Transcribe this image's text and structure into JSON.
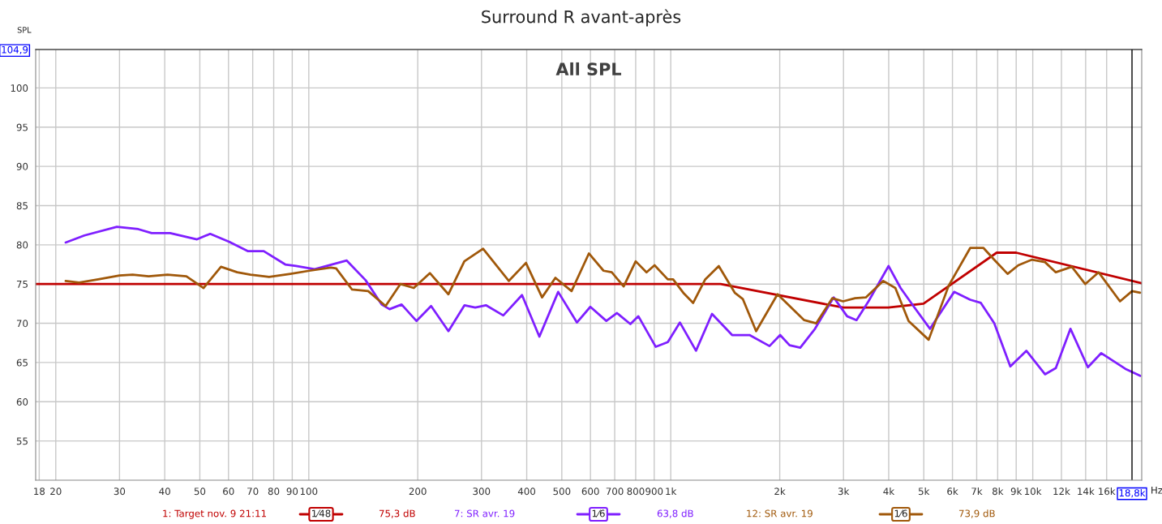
{
  "chart_data": {
    "type": "line",
    "title": "Surround R avant-après",
    "subtitle": "All SPL",
    "xlabel": "Hz",
    "ylabel": "SPL",
    "log": "x",
    "grid": true,
    "legend": "bottom",
    "line_style": "solid",
    "marker": "none",
    "xlim": [
      17.6,
      20000
    ],
    "ylim": [
      50,
      104.9
    ],
    "xticks": [
      18,
      20,
      30,
      40,
      50,
      60,
      70,
      80,
      90,
      100,
      200,
      300,
      400,
      500,
      600,
      700,
      800,
      900,
      {
        "value": 1000,
        "label": "1k"
      },
      {
        "value": 2000,
        "label": "2k"
      },
      {
        "value": 3000,
        "label": "3k"
      },
      {
        "value": 4000,
        "label": "4k"
      },
      {
        "value": 5000,
        "label": "5k"
      },
      {
        "value": 6000,
        "label": "6k"
      },
      {
        "value": 7000,
        "label": "7k"
      },
      {
        "value": 8000,
        "label": "8k"
      },
      {
        "value": 9000,
        "label": "9k"
      },
      {
        "value": 10000,
        "label": "10k"
      },
      {
        "value": 12000,
        "label": "12k"
      },
      {
        "value": 14000,
        "label": "14k"
      },
      {
        "value": 16000,
        "label": "16k"
      }
    ],
    "yticks": [
      55,
      60,
      65,
      70,
      75,
      80,
      85,
      90,
      95,
      100,
      {
        "value": 104.9,
        "label": "104,9"
      }
    ],
    "ref_lines": [
      {
        "axis": "x",
        "value": 18800,
        "label": "18,8k",
        "color": "#000000"
      }
    ],
    "annotations": [
      "1⁄48",
      "75,3 dB",
      "1⁄6",
      "63,8 dB",
      "1⁄6",
      "73,9 dB"
    ],
    "series": [
      {
        "name": "1: Target nov. 9 21:11",
        "color": "#c00000",
        "x": [
          17.6,
          1373,
          2997,
          3990,
          4990,
          7950,
          9000,
          20000
        ],
        "values": [
          75,
          75,
          72,
          72,
          72.5,
          79,
          79,
          75.1
        ]
      },
      {
        "name": "7: SR avr. 19",
        "color": "#7f1fff",
        "x": [
          21.3,
          24.0,
          29.5,
          33.8,
          36.8,
          41.4,
          49.1,
          53.4,
          60.2,
          67.8,
          75.1,
          86.1,
          92.2,
          103.8,
          127.3,
          143.5,
          158.9,
          167.2,
          180.5,
          198.3,
          217.7,
          243.1,
          269.3,
          288.3,
          308.6,
          344.6,
          388.2,
          433.5,
          488.6,
          550.4,
          599.5,
          663.7,
          710.3,
          773.5,
          813.8,
          908.9,
          981.3,
          1060,
          1174,
          1300,
          1477,
          1650,
          1874,
          2005,
          2129,
          2279,
          2503,
          2819,
          3070,
          3259,
          3517,
          3996,
          4313,
          4697,
          5202,
          6064,
          6717,
          7188,
          7828,
          8669,
          9601,
          10810,
          11580,
          12710,
          14200,
          15460,
          18020,
          19800
        ],
        "values": [
          80.3,
          81.2,
          82.3,
          82.0,
          81.5,
          81.5,
          80.7,
          81.4,
          80.4,
          79.2,
          79.2,
          77.5,
          77.3,
          76.9,
          78.0,
          75.5,
          72.4,
          71.8,
          72.4,
          70.3,
          72.2,
          69.0,
          72.3,
          72.0,
          72.3,
          71.0,
          73.6,
          68.3,
          74.0,
          70.1,
          72.1,
          70.3,
          71.3,
          69.9,
          70.9,
          67.0,
          67.6,
          70.1,
          66.5,
          71.2,
          68.5,
          68.5,
          67.1,
          68.5,
          67.2,
          66.9,
          69.3,
          73.3,
          70.9,
          70.4,
          72.8,
          77.3,
          74.5,
          72.1,
          69.3,
          74.0,
          73.0,
          72.6,
          70.0,
          64.5,
          66.5,
          63.5,
          64.3,
          69.3,
          64.4,
          66.2,
          64.2,
          63.3
        ]
      },
      {
        "name": "12: SR avr. 19",
        "color": "#a0580a",
        "x": [
          21.3,
          23.2,
          26.2,
          30.0,
          32.6,
          36.1,
          40.7,
          45.9,
          51.2,
          57.2,
          63.4,
          69.0,
          77.7,
          89.0,
          100.4,
          115,
          119,
          131.7,
          145.9,
          163,
          179,
          195,
          216,
          243,
          269,
          303,
          357,
          398,
          441,
          480,
          532,
          594,
          652,
          687,
          741,
          800,
          857,
          902,
          981,
          1015,
          1087,
          1153,
          1245,
          1357,
          1502,
          1581,
          1721,
          1972,
          2184,
          2337,
          2523,
          2795,
          2992,
          3230,
          3458,
          3864,
          4172,
          4539,
          5157,
          5859,
          6717,
          7311,
          7828,
          8522,
          9123,
          9934,
          10810,
          11580,
          12820,
          13960,
          15200,
          17420,
          18810,
          19800
        ],
        "values": [
          75.4,
          75.2,
          75.6,
          76.1,
          76.2,
          76.0,
          76.2,
          76.0,
          74.5,
          77.2,
          76.5,
          76.2,
          75.9,
          76.3,
          76.7,
          77.1,
          77.0,
          74.3,
          74.1,
          72.2,
          75.0,
          74.5,
          76.4,
          73.7,
          77.9,
          79.5,
          75.4,
          77.7,
          73.3,
          75.8,
          74.1,
          78.9,
          76.7,
          76.5,
          74.7,
          77.9,
          76.5,
          77.4,
          75.6,
          75.6,
          73.8,
          72.6,
          75.6,
          77.3,
          73.9,
          73.1,
          69.0,
          73.7,
          71.7,
          70.4,
          70.0,
          73.2,
          72.8,
          73.2,
          73.3,
          75.4,
          74.5,
          70.3,
          67.9,
          74.8,
          79.6,
          79.6,
          78.1,
          76.3,
          77.4,
          78.1,
          77.8,
          76.5,
          77.2,
          75.0,
          76.5,
          72.8,
          74.1,
          73.9
        ]
      }
    ]
  }
}
